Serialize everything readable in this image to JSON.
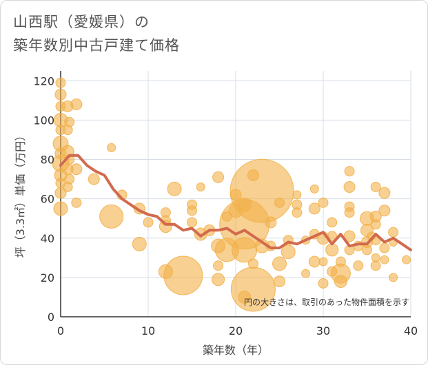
{
  "title_line1": "山西駅（愛媛県）の",
  "title_line2": "築年数別中古戸建て価格",
  "colors": {
    "bubble": "#f2b04a",
    "line": "#d26a4e",
    "grid": "#d6dde6",
    "plot_bg": "#ffffff"
  },
  "chart_data": {
    "type": "scatter",
    "xlabel": "築年数（年）",
    "ylabel": "坪（3.3㎡）単価（万円）",
    "xlim": [
      0,
      40
    ],
    "ylim": [
      0,
      125
    ],
    "x_ticks": [
      0,
      10,
      20,
      30,
      40
    ],
    "y_ticks": [
      0,
      20,
      40,
      60,
      80,
      100,
      120
    ],
    "annotation": "円の大きさは、取引のあった物件面積を示す",
    "series": [
      {
        "kind": "bubbles",
        "points": [
          {
            "x": 0,
            "y": 119,
            "r": 7
          },
          {
            "x": 0,
            "y": 113,
            "r": 8
          },
          {
            "x": 0,
            "y": 107,
            "r": 7
          },
          {
            "x": 0,
            "y": 100,
            "r": 10
          },
          {
            "x": 0,
            "y": 95,
            "r": 7
          },
          {
            "x": 0,
            "y": 88,
            "r": 11
          },
          {
            "x": 0,
            "y": 83,
            "r": 8
          },
          {
            "x": 0,
            "y": 78,
            "r": 12
          },
          {
            "x": 0,
            "y": 72,
            "r": 9
          },
          {
            "x": 0,
            "y": 68,
            "r": 7
          },
          {
            "x": 0,
            "y": 63,
            "r": 8
          },
          {
            "x": 0,
            "y": 55,
            "r": 10
          },
          {
            "x": 0.8,
            "y": 107,
            "r": 8
          },
          {
            "x": 1,
            "y": 99,
            "r": 7
          },
          {
            "x": 0.8,
            "y": 95,
            "r": 7
          },
          {
            "x": 0.8,
            "y": 84,
            "r": 9
          },
          {
            "x": 1,
            "y": 80,
            "r": 7
          },
          {
            "x": 0.8,
            "y": 75,
            "r": 8
          },
          {
            "x": 1,
            "y": 70,
            "r": 7
          },
          {
            "x": 0.8,
            "y": 66,
            "r": 7
          },
          {
            "x": 1.8,
            "y": 108,
            "r": 8
          },
          {
            "x": 1.8,
            "y": 75,
            "r": 8
          },
          {
            "x": 1.8,
            "y": 58,
            "r": 7
          },
          {
            "x": 3.8,
            "y": 70,
            "r": 8
          },
          {
            "x": 5.8,
            "y": 86,
            "r": 6
          },
          {
            "x": 5.8,
            "y": 51,
            "r": 17
          },
          {
            "x": 7,
            "y": 62,
            "r": 7
          },
          {
            "x": 9,
            "y": 55,
            "r": 8
          },
          {
            "x": 9,
            "y": 37,
            "r": 10
          },
          {
            "x": 10,
            "y": 48,
            "r": 7
          },
          {
            "x": 12,
            "y": 53,
            "r": 7
          },
          {
            "x": 12,
            "y": 49,
            "r": 7
          },
          {
            "x": 12,
            "y": 46,
            "r": 9
          },
          {
            "x": 12,
            "y": 23,
            "r": 10
          },
          {
            "x": 13,
            "y": 65,
            "r": 10
          },
          {
            "x": 14,
            "y": 21,
            "r": 28
          },
          {
            "x": 15,
            "y": 57,
            "r": 7
          },
          {
            "x": 15,
            "y": 54,
            "r": 7
          },
          {
            "x": 15,
            "y": 48,
            "r": 7
          },
          {
            "x": 16,
            "y": 66,
            "r": 6
          },
          {
            "x": 16,
            "y": 42,
            "r": 9
          },
          {
            "x": 17,
            "y": 44,
            "r": 8
          },
          {
            "x": 18,
            "y": 71,
            "r": 8
          },
          {
            "x": 18,
            "y": 36,
            "r": 10
          },
          {
            "x": 18,
            "y": 26,
            "r": 7
          },
          {
            "x": 18,
            "y": 19,
            "r": 9
          },
          {
            "x": 19,
            "y": 51,
            "r": 7
          },
          {
            "x": 19,
            "y": 34,
            "r": 17
          },
          {
            "x": 20,
            "y": 62,
            "r": 8
          },
          {
            "x": 20,
            "y": 54,
            "r": 10
          },
          {
            "x": 21,
            "y": 57,
            "r": 10
          },
          {
            "x": 21,
            "y": 47,
            "r": 36
          },
          {
            "x": 21,
            "y": 34,
            "r": 18
          },
          {
            "x": 21,
            "y": 10,
            "r": 9
          },
          {
            "x": 22,
            "y": 72,
            "r": 8
          },
          {
            "x": 22,
            "y": 27,
            "r": 7
          },
          {
            "x": 22,
            "y": 14,
            "r": 32
          },
          {
            "x": 23,
            "y": 64,
            "r": 46
          },
          {
            "x": 23,
            "y": 36,
            "r": 10
          },
          {
            "x": 24,
            "y": 48,
            "r": 8
          },
          {
            "x": 24,
            "y": 36,
            "r": 7
          },
          {
            "x": 25,
            "y": 58,
            "r": 7
          },
          {
            "x": 25,
            "y": 27,
            "r": 10
          },
          {
            "x": 25,
            "y": 18,
            "r": 8
          },
          {
            "x": 26,
            "y": 39,
            "r": 7
          },
          {
            "x": 26,
            "y": 33,
            "r": 10
          },
          {
            "x": 27,
            "y": 62,
            "r": 6
          },
          {
            "x": 27,
            "y": 57,
            "r": 7
          },
          {
            "x": 27,
            "y": 53,
            "r": 7
          },
          {
            "x": 28,
            "y": 39,
            "r": 6
          },
          {
            "x": 28,
            "y": 22,
            "r": 6
          },
          {
            "x": 29,
            "y": 65,
            "r": 6
          },
          {
            "x": 29,
            "y": 55,
            "r": 8
          },
          {
            "x": 29,
            "y": 42,
            "r": 7
          },
          {
            "x": 29,
            "y": 28,
            "r": 8
          },
          {
            "x": 30,
            "y": 58,
            "r": 7
          },
          {
            "x": 30,
            "y": 40,
            "r": 9
          },
          {
            "x": 30,
            "y": 28,
            "r": 6
          },
          {
            "x": 30,
            "y": 17,
            "r": 7
          },
          {
            "x": 31,
            "y": 48,
            "r": 7
          },
          {
            "x": 31,
            "y": 41,
            "r": 7
          },
          {
            "x": 31,
            "y": 34,
            "r": 9
          },
          {
            "x": 31,
            "y": 23,
            "r": 7
          },
          {
            "x": 32,
            "y": 22,
            "r": 14
          },
          {
            "x": 32,
            "y": 28,
            "r": 7
          },
          {
            "x": 32,
            "y": 18,
            "r": 9
          },
          {
            "x": 33,
            "y": 74,
            "r": 7
          },
          {
            "x": 33,
            "y": 66,
            "r": 8
          },
          {
            "x": 33,
            "y": 56,
            "r": 7
          },
          {
            "x": 33,
            "y": 53,
            "r": 7
          },
          {
            "x": 33,
            "y": 41,
            "r": 8
          },
          {
            "x": 33,
            "y": 34,
            "r": 7
          },
          {
            "x": 34,
            "y": 36,
            "r": 7
          },
          {
            "x": 34,
            "y": 26,
            "r": 7
          },
          {
            "x": 35,
            "y": 50,
            "r": 10
          },
          {
            "x": 35,
            "y": 44,
            "r": 9
          },
          {
            "x": 35,
            "y": 38,
            "r": 8
          },
          {
            "x": 35,
            "y": 34,
            "r": 7
          },
          {
            "x": 35.5,
            "y": 41,
            "r": 6
          },
          {
            "x": 36,
            "y": 66,
            "r": 7
          },
          {
            "x": 36,
            "y": 51,
            "r": 8
          },
          {
            "x": 36,
            "y": 47,
            "r": 7
          },
          {
            "x": 36,
            "y": 39,
            "r": 7
          },
          {
            "x": 36,
            "y": 30,
            "r": 6
          },
          {
            "x": 36,
            "y": 26,
            "r": 7
          },
          {
            "x": 37,
            "y": 63,
            "r": 8
          },
          {
            "x": 37,
            "y": 54,
            "r": 8
          },
          {
            "x": 37,
            "y": 35,
            "r": 7
          },
          {
            "x": 37,
            "y": 29,
            "r": 6
          },
          {
            "x": 38,
            "y": 43,
            "r": 7
          },
          {
            "x": 38,
            "y": 38,
            "r": 6
          },
          {
            "x": 38,
            "y": 20,
            "r": 6
          },
          {
            "x": 39.5,
            "y": 29,
            "r": 6
          }
        ]
      },
      {
        "kind": "line",
        "x": [
          0,
          1,
          2,
          3,
          4,
          5,
          6,
          7,
          8,
          9,
          10,
          11,
          12,
          13,
          14,
          15,
          16,
          17,
          18,
          19,
          20,
          21,
          22,
          23,
          24,
          25,
          26,
          27,
          28,
          29,
          30,
          31,
          32,
          33,
          34,
          35,
          36,
          37,
          38,
          39,
          40
        ],
        "y": [
          77,
          82,
          82,
          77,
          74,
          72,
          65,
          60,
          57,
          54,
          52,
          51,
          47,
          47,
          44,
          45,
          41,
          44,
          44,
          45,
          42,
          44,
          41,
          38,
          35,
          35,
          38,
          37,
          39,
          41,
          43,
          37,
          42,
          36,
          37,
          37,
          42,
          38,
          40,
          37,
          34
        ]
      }
    ]
  }
}
